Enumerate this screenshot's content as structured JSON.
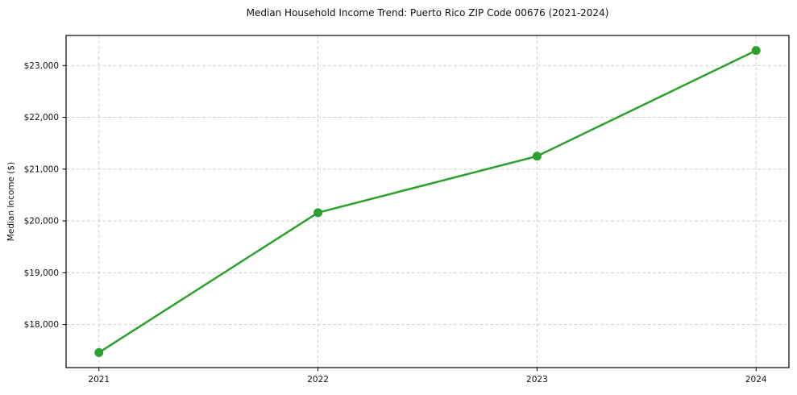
{
  "chart_data": {
    "type": "line",
    "title": "Median Household Income Trend: Puerto Rico ZIP Code 00676 (2021-2024)",
    "xlabel": "",
    "ylabel": "Median Income ($)",
    "categories": [
      "2021",
      "2022",
      "2023",
      "2024"
    ],
    "series": [
      {
        "name": "Median Household Income",
        "values": [
          17460,
          20160,
          21250,
          23290
        ]
      }
    ],
    "y_ticks": [
      18000,
      19000,
      20000,
      21000,
      22000,
      23000
    ],
    "y_tick_labels": [
      "$18,000",
      "$19,000",
      "$20,000",
      "$21,000",
      "$22,000",
      "$23,000"
    ],
    "ylim": [
      17170,
      23580
    ],
    "grid": true,
    "legend": "none",
    "colors": {
      "line": "#2ca02c",
      "marker": "#2ca02c",
      "grid": "#cfcfcf",
      "spine": "#000000",
      "background": "#ffffff",
      "text": "#111111"
    }
  }
}
